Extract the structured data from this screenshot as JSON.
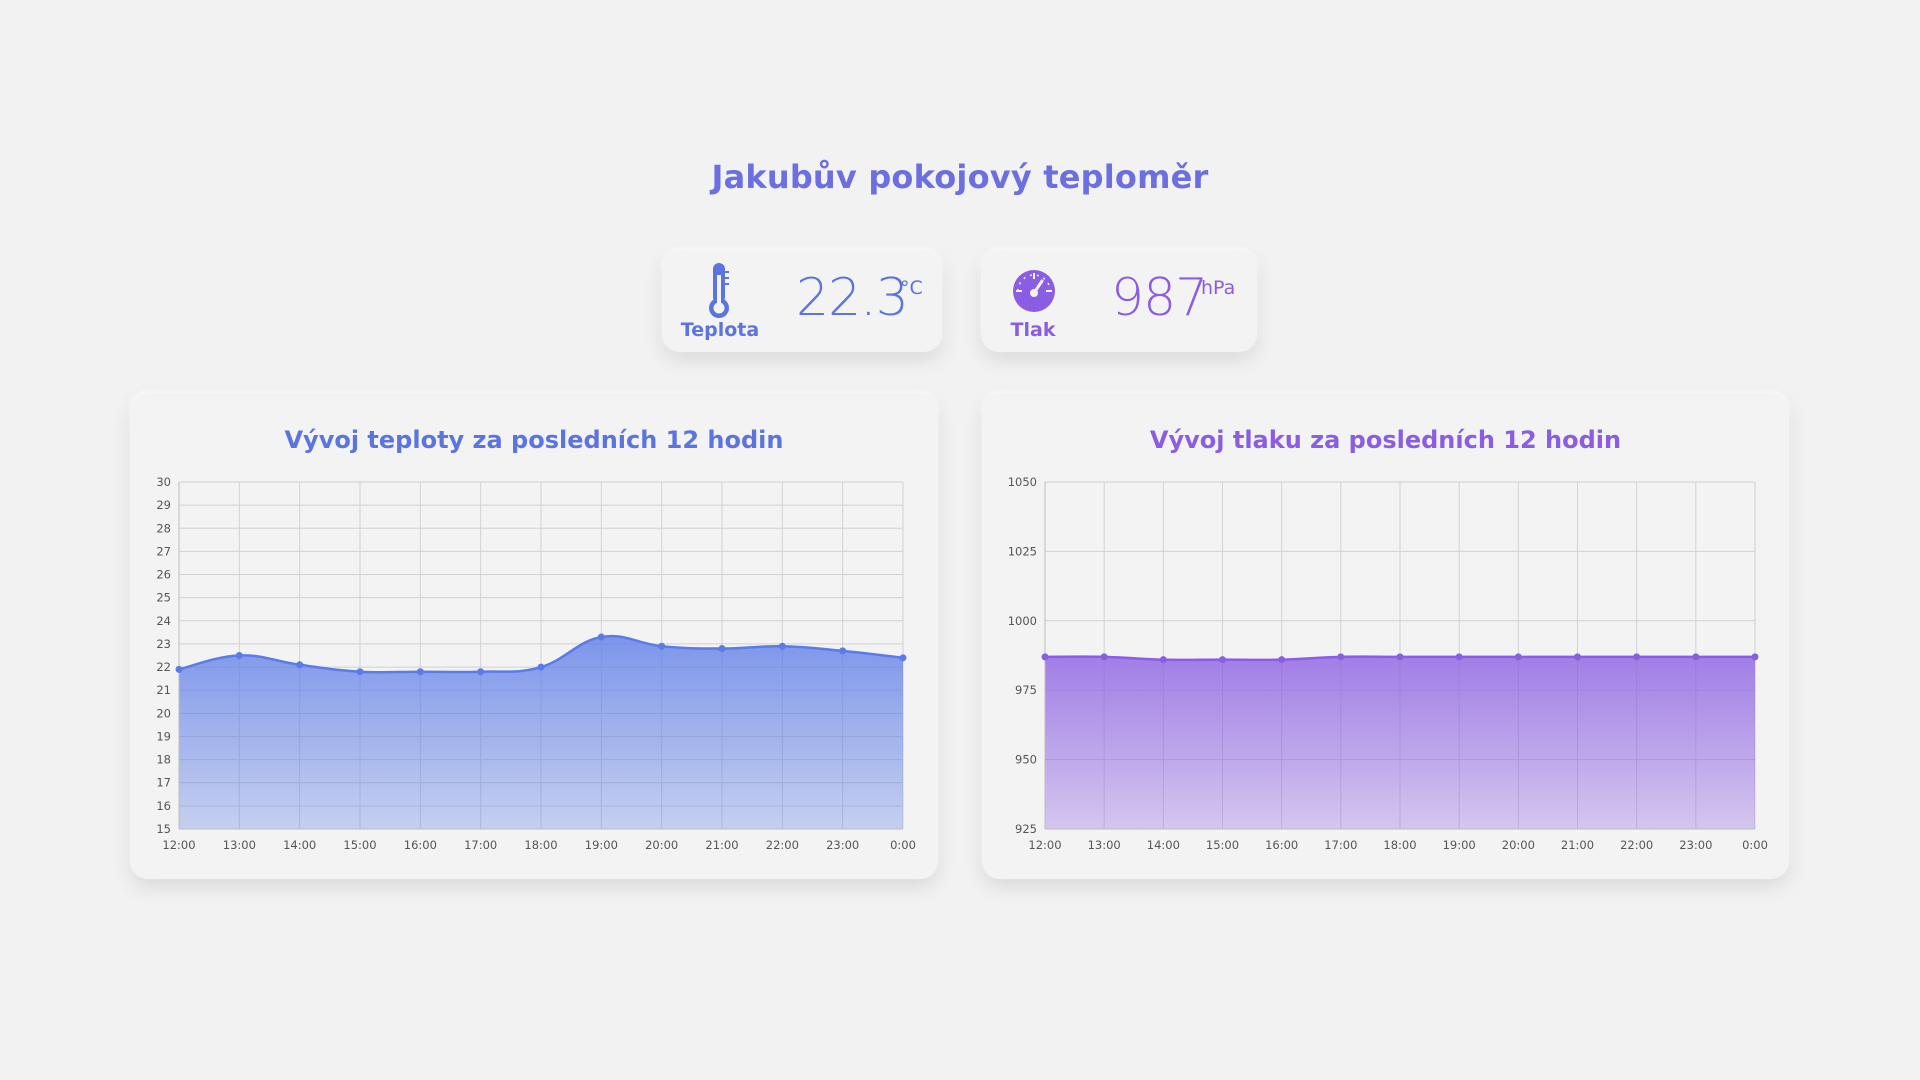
{
  "header": {
    "title": "Jakubův pokojový teploměr"
  },
  "stats": {
    "temperature": {
      "label": "Teplota",
      "value": "22.3",
      "unit": "°C",
      "icon": "thermometer-icon",
      "color": "#5b74e0"
    },
    "pressure": {
      "label": "Tlak",
      "value": "987",
      "unit": "hPa",
      "icon": "gauge-icon",
      "color": "#8a5de3"
    }
  },
  "charts": {
    "temperature": {
      "title": "Vývoj teploty za posledních 12 hodin"
    },
    "pressure": {
      "title": "Vývoj tlaku za posledních 12 hodin"
    }
  },
  "chart_data": [
    {
      "type": "area",
      "title": "Vývoj teploty za posledních 12 hodin",
      "x": [
        "12:00",
        "13:00",
        "14:00",
        "15:00",
        "16:00",
        "17:00",
        "18:00",
        "19:00",
        "20:00",
        "21:00",
        "22:00",
        "23:00",
        "0:00"
      ],
      "values": [
        21.9,
        22.5,
        22.1,
        21.8,
        21.8,
        21.8,
        22.0,
        23.3,
        22.9,
        22.8,
        22.9,
        22.7,
        22.4
      ],
      "ylim": [
        15,
        30
      ],
      "yticks": [
        15,
        16,
        17,
        18,
        19,
        20,
        21,
        22,
        23,
        24,
        25,
        26,
        27,
        28,
        29,
        30
      ],
      "grid": true,
      "color": "#5b7be8"
    },
    {
      "type": "area",
      "title": "Vývoj tlaku za posledních 12 hodin",
      "x": [
        "12:00",
        "13:00",
        "14:00",
        "15:00",
        "16:00",
        "17:00",
        "18:00",
        "19:00",
        "20:00",
        "21:00",
        "22:00",
        "23:00",
        "0:00"
      ],
      "values": [
        987,
        987,
        986,
        986,
        986,
        987,
        987,
        987,
        987,
        987,
        987,
        987,
        987
      ],
      "ylim": [
        925,
        1050
      ],
      "yticks": [
        925,
        950,
        975,
        1000,
        1025,
        1050
      ],
      "grid": true,
      "color": "#8a5de3"
    }
  ]
}
